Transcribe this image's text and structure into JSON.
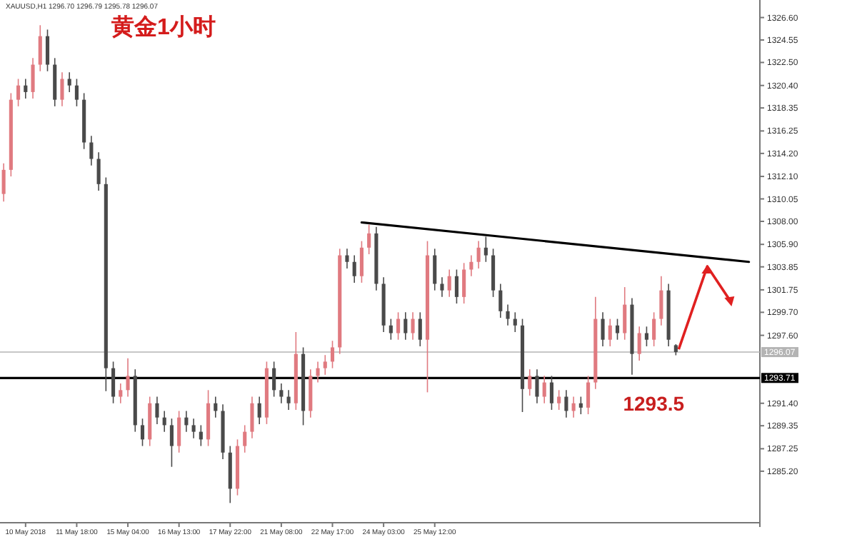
{
  "chart_data": {
    "type": "candlestick",
    "title": "黄金1小时",
    "subtitle": "XAUUSD,H1 1296.70 1296.79 1295.78 1296.07",
    "categories": [
      null,
      null,
      null,
      "10 May 2018",
      null,
      null,
      null,
      null,
      null,
      null,
      "11 May 18:00",
      null,
      null,
      null,
      null,
      null,
      null,
      "15 May 04:00",
      null,
      null,
      null,
      null,
      null,
      null,
      "16 May 13:00",
      null,
      null,
      null,
      null,
      null,
      null,
      "17 May 22:00",
      null,
      null,
      null,
      null,
      null,
      null,
      "21 May 08:00",
      null,
      null,
      null,
      null,
      null,
      null,
      "22 May 17:00",
      null,
      null,
      null,
      null,
      null,
      null,
      "24 May 03:00",
      null,
      null,
      null,
      null,
      null,
      null,
      "25 May 12:00",
      null,
      null,
      null,
      null,
      null,
      null,
      null,
      null,
      null,
      null,
      null,
      null,
      null,
      null,
      null,
      null,
      null,
      null,
      null,
      null,
      null,
      null,
      null,
      null,
      null,
      null,
      null,
      null,
      null,
      null,
      null,
      null,
      null,
      null,
      null,
      null,
      null,
      null,
      null,
      null,
      null,
      null,
      null,
      null
    ],
    "ohlc": [
      [
        1310.5,
        1313.3,
        1309.8,
        1312.7
      ],
      [
        1312.7,
        1319.7,
        1312.1,
        1319.1
      ],
      [
        1319.1,
        1321.0,
        1318.5,
        1320.4
      ],
      [
        1320.4,
        1321.0,
        1319.2,
        1319.8
      ],
      [
        1319.8,
        1322.9,
        1319.2,
        1322.3
      ],
      [
        1322.3,
        1325.9,
        1321.7,
        1324.9
      ],
      [
        1324.9,
        1325.5,
        1321.7,
        1322.3
      ],
      [
        1322.3,
        1322.9,
        1318.5,
        1319.1
      ],
      [
        1319.1,
        1321.6,
        1318.5,
        1321.0
      ],
      [
        1321.0,
        1321.6,
        1319.8,
        1320.4
      ],
      [
        1320.4,
        1321.0,
        1318.5,
        1319.1
      ],
      [
        1319.1,
        1319.7,
        1314.6,
        1315.2
      ],
      [
        1315.2,
        1315.8,
        1313.1,
        1313.7
      ],
      [
        1313.7,
        1314.3,
        1310.8,
        1311.4
      ],
      [
        1311.4,
        1312.0,
        1292.5,
        1294.6
      ],
      [
        1294.6,
        1295.2,
        1291.4,
        1292.0
      ],
      [
        1292.0,
        1293.2,
        1291.4,
        1292.6
      ],
      [
        1292.6,
        1295.5,
        1292.0,
        1293.9
      ],
      [
        1293.9,
        1294.5,
        1288.8,
        1289.4
      ],
      [
        1289.4,
        1290.0,
        1287.5,
        1288.1
      ],
      [
        1288.1,
        1292.0,
        1287.5,
        1291.4
      ],
      [
        1291.4,
        1292.0,
        1289.5,
        1290.1
      ],
      [
        1290.1,
        1290.7,
        1288.8,
        1289.4
      ],
      [
        1289.4,
        1290.0,
        1285.6,
        1287.5
      ],
      [
        1287.5,
        1290.7,
        1286.9,
        1290.1
      ],
      [
        1290.1,
        1290.7,
        1288.8,
        1289.4
      ],
      [
        1289.4,
        1290.0,
        1288.2,
        1288.8
      ],
      [
        1288.8,
        1289.4,
        1287.5,
        1288.1
      ],
      [
        1288.1,
        1292.6,
        1287.5,
        1291.4
      ],
      [
        1291.4,
        1292.0,
        1290.1,
        1290.7
      ],
      [
        1290.7,
        1291.3,
        1286.3,
        1286.9
      ],
      [
        1286.9,
        1287.5,
        1282.3,
        1283.6
      ],
      [
        1283.6,
        1288.1,
        1283.0,
        1287.5
      ],
      [
        1287.5,
        1289.4,
        1286.9,
        1288.8
      ],
      [
        1288.8,
        1292.0,
        1288.2,
        1291.4
      ],
      [
        1291.4,
        1292.0,
        1289.5,
        1290.1
      ],
      [
        1290.1,
        1295.2,
        1289.5,
        1294.6
      ],
      [
        1294.6,
        1295.2,
        1292.0,
        1292.6
      ],
      [
        1292.6,
        1293.2,
        1291.4,
        1292.0
      ],
      [
        1292.0,
        1292.6,
        1290.8,
        1291.4
      ],
      [
        1291.4,
        1297.9,
        1290.8,
        1295.9
      ],
      [
        1295.9,
        1296.5,
        1289.4,
        1290.7
      ],
      [
        1290.7,
        1294.5,
        1290.1,
        1293.9
      ],
      [
        1293.9,
        1295.2,
        1293.3,
        1294.6
      ],
      [
        1294.6,
        1295.8,
        1294.0,
        1295.2
      ],
      [
        1295.2,
        1297.1,
        1294.6,
        1296.5
      ],
      [
        1296.5,
        1305.5,
        1295.9,
        1304.9
      ],
      [
        1304.9,
        1305.5,
        1303.7,
        1304.3
      ],
      [
        1304.3,
        1304.9,
        1302.4,
        1303.0
      ],
      [
        1303.0,
        1306.2,
        1302.4,
        1305.6
      ],
      [
        1305.6,
        1307.7,
        1305.0,
        1306.9
      ],
      [
        1306.9,
        1307.5,
        1301.7,
        1302.3
      ],
      [
        1302.3,
        1302.9,
        1297.9,
        1298.5
      ],
      [
        1298.5,
        1299.1,
        1297.2,
        1297.8
      ],
      [
        1297.8,
        1299.7,
        1297.2,
        1299.1
      ],
      [
        1299.1,
        1299.7,
        1297.2,
        1297.8
      ],
      [
        1297.8,
        1299.7,
        1297.2,
        1299.1
      ],
      [
        1299.1,
        1299.7,
        1296.6,
        1297.2
      ],
      [
        1297.2,
        1306.2,
        1292.4,
        1304.9
      ],
      [
        1304.9,
        1305.5,
        1301.7,
        1302.3
      ],
      [
        1302.3,
        1302.9,
        1301.1,
        1301.7
      ],
      [
        1301.7,
        1303.6,
        1301.1,
        1303.0
      ],
      [
        1303.0,
        1303.6,
        1300.5,
        1301.1
      ],
      [
        1301.1,
        1304.2,
        1300.5,
        1303.6
      ],
      [
        1303.6,
        1304.9,
        1303.0,
        1304.3
      ],
      [
        1304.3,
        1306.2,
        1303.7,
        1305.6
      ],
      [
        1305.6,
        1306.6,
        1304.3,
        1304.9
      ],
      [
        1304.9,
        1305.5,
        1301.1,
        1301.7
      ],
      [
        1301.7,
        1302.3,
        1299.2,
        1299.8
      ],
      [
        1299.8,
        1300.4,
        1298.5,
        1299.1
      ],
      [
        1299.1,
        1299.7,
        1297.9,
        1298.5
      ],
      [
        1298.5,
        1299.1,
        1290.6,
        1292.7
      ],
      [
        1292.7,
        1294.5,
        1292.1,
        1293.9
      ],
      [
        1293.9,
        1294.5,
        1291.4,
        1292.0
      ],
      [
        1292.0,
        1293.9,
        1291.4,
        1293.3
      ],
      [
        1293.3,
        1293.9,
        1290.8,
        1291.4
      ],
      [
        1291.4,
        1292.6,
        1290.8,
        1292.0
      ],
      [
        1292.0,
        1292.6,
        1290.1,
        1290.7
      ],
      [
        1290.7,
        1292.0,
        1290.1,
        1291.4
      ],
      [
        1291.4,
        1292.0,
        1290.4,
        1291.0
      ],
      [
        1291.0,
        1293.9,
        1290.4,
        1293.3
      ],
      [
        1293.3,
        1301.1,
        1292.7,
        1299.1
      ],
      [
        1299.1,
        1299.7,
        1296.6,
        1297.2
      ],
      [
        1297.2,
        1299.1,
        1296.6,
        1298.5
      ],
      [
        1298.5,
        1299.1,
        1297.2,
        1297.8
      ],
      [
        1297.8,
        1302.0,
        1297.2,
        1300.4
      ],
      [
        1300.4,
        1301.0,
        1294.0,
        1295.9
      ],
      [
        1295.9,
        1298.4,
        1295.3,
        1297.8
      ],
      [
        1297.8,
        1298.4,
        1296.6,
        1297.2
      ],
      [
        1297.2,
        1299.7,
        1296.6,
        1299.1
      ],
      [
        1299.1,
        1303.0,
        1298.5,
        1301.7
      ],
      [
        1301.7,
        1302.3,
        1296.6,
        1297.2
      ],
      [
        1296.7,
        1296.79,
        1295.78,
        1296.07
      ],
      null,
      null,
      null,
      null,
      null,
      null,
      null,
      null,
      null,
      null,
      null
    ],
    "series": [
      {
        "type": "line",
        "color": "#000000",
        "values": [
          null,
          null,
          null,
          null,
          null,
          null,
          null,
          null,
          null,
          null,
          null,
          null,
          null,
          null,
          null,
          null,
          null,
          null,
          null,
          null,
          null,
          null,
          null,
          null,
          null,
          null,
          null,
          null,
          null,
          null,
          null,
          null,
          null,
          null,
          null,
          null,
          null,
          null,
          null,
          null,
          null,
          null,
          null,
          null,
          null,
          null,
          null,
          null,
          null,
          1307.9,
          null,
          null,
          null,
          null,
          null,
          null,
          null,
          null,
          null,
          null,
          null,
          null,
          null,
          null,
          null,
          null,
          null,
          null,
          null,
          null,
          null,
          null,
          null,
          null,
          null,
          null,
          null,
          null,
          null,
          null,
          null,
          null,
          null,
          null,
          null,
          null,
          null,
          null,
          null,
          null,
          null,
          null,
          null,
          null,
          null,
          null,
          null,
          null,
          null,
          null,
          null,
          null,
          1304.3,
          null
        ]
      }
    ],
    "ylim": [
      1280.5,
      1328.2
    ],
    "yticks": [
      {
        "value": 1285.2,
        "label": "1285.20"
      },
      {
        "value": 1287.25,
        "label": "1287.25"
      },
      {
        "value": 1289.35,
        "label": "1289.35"
      },
      {
        "value": 1291.4,
        "label": "1291.40"
      },
      {
        "value": 1297.6,
        "label": "1297.60"
      },
      {
        "value": 1299.7,
        "label": "1299.70"
      },
      {
        "value": 1301.75,
        "label": "1301.75"
      },
      {
        "value": 1303.85,
        "label": "1303.85"
      },
      {
        "value": 1305.9,
        "label": "1305.90"
      },
      {
        "value": 1308,
        "label": "1308.00"
      },
      {
        "value": 1310.05,
        "label": "1310.05"
      },
      {
        "value": 1312.1,
        "label": "1312.10"
      },
      {
        "value": 1314.2,
        "label": "1314.20"
      },
      {
        "value": 1316.25,
        "label": "1316.25"
      },
      {
        "value": 1318.35,
        "label": "1318.35"
      },
      {
        "value": 1320.4,
        "label": "1320.40"
      },
      {
        "value": 1322.5,
        "label": "1322.50"
      },
      {
        "value": 1324.55,
        "label": "1324.55"
      },
      {
        "value": 1326.6,
        "label": "1326.60"
      }
    ],
    "ref_lines": [
      {
        "axis": "y",
        "value": 1296.07,
        "label": "1296.07",
        "color": "#b4b4b4"
      },
      {
        "axis": "y",
        "value": 1293.71,
        "label": "1293.71",
        "color": "#000000"
      }
    ],
    "annotations": [
      {
        "text": "1293.5",
        "y": 1293.5
      }
    ],
    "grid": false
  }
}
